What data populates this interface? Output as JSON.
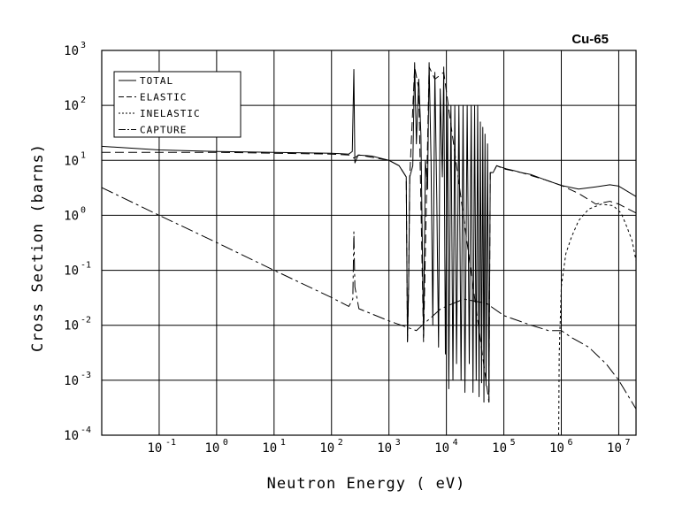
{
  "chart_data": {
    "type": "line",
    "title": "Cu-65",
    "xlabel": "Neutron Energy ( eV)",
    "ylabel": "Cross Section (barns)",
    "x_scale": "log",
    "y_scale": "log",
    "xlim": [
      0.01,
      20000000
    ],
    "ylim": [
      0.0001,
      1000
    ],
    "grid": true,
    "legend_position": "top-left",
    "x_ticks": [
      {
        "value": 0.1,
        "base": "10",
        "exp": "-1"
      },
      {
        "value": 1,
        "base": "10",
        "exp": "0"
      },
      {
        "value": 10,
        "base": "10",
        "exp": "1"
      },
      {
        "value": 100,
        "base": "10",
        "exp": "2"
      },
      {
        "value": 1000,
        "base": "10",
        "exp": "3"
      },
      {
        "value": 10000,
        "base": "10",
        "exp": "4"
      },
      {
        "value": 100000,
        "base": "10",
        "exp": "5"
      },
      {
        "value": 1000000,
        "base": "10",
        "exp": "6"
      },
      {
        "value": 10000000,
        "base": "10",
        "exp": "7"
      }
    ],
    "y_ticks": [
      {
        "value": 0.0001,
        "base": "10",
        "exp": "-4"
      },
      {
        "value": 0.001,
        "base": "10",
        "exp": "-3"
      },
      {
        "value": 0.01,
        "base": "10",
        "exp": "-2"
      },
      {
        "value": 0.1,
        "base": "10",
        "exp": "-1"
      },
      {
        "value": 1,
        "base": "10",
        "exp": "0"
      },
      {
        "value": 10,
        "base": "10",
        "exp": "1"
      },
      {
        "value": 100,
        "base": "10",
        "exp": "2"
      },
      {
        "value": 1000,
        "base": "10",
        "exp": "3"
      }
    ],
    "series": [
      {
        "name": "TOTAL",
        "dash": "",
        "points": [
          [
            0.01,
            18
          ],
          [
            0.1,
            15.5
          ],
          [
            1,
            14.5
          ],
          [
            10,
            14
          ],
          [
            100,
            13.5
          ],
          [
            200,
            13
          ],
          [
            230,
            14.5
          ],
          [
            245,
            450
          ],
          [
            255,
            9
          ],
          [
            290,
            12.5
          ],
          [
            500,
            12
          ],
          [
            1000,
            10
          ],
          [
            1500,
            8
          ],
          [
            2000,
            5
          ],
          [
            2100,
            0.005
          ],
          [
            2200,
            0.05
          ],
          [
            2300,
            5
          ],
          [
            2600,
            8
          ],
          [
            2800,
            600
          ],
          [
            3000,
            20
          ],
          [
            3300,
            300
          ],
          [
            3600,
            30
          ],
          [
            4000,
            0.006
          ],
          [
            4300,
            10
          ],
          [
            4700,
            3
          ],
          [
            5000,
            600
          ],
          [
            5400,
            10
          ],
          [
            5800,
            0.01
          ],
          [
            6300,
            400
          ],
          [
            6800,
            2
          ],
          [
            7300,
            0.004
          ],
          [
            7800,
            200
          ],
          [
            8500,
            5
          ],
          [
            9000,
            500
          ],
          [
            9600,
            0.003
          ],
          [
            10500,
            100
          ],
          [
            11000,
            0.0007
          ],
          [
            12000,
            100
          ],
          [
            13000,
            0.001
          ],
          [
            14000,
            100
          ],
          [
            15000,
            0.002
          ],
          [
            16500,
            100
          ],
          [
            18000,
            0.001
          ],
          [
            19500,
            100
          ],
          [
            21000,
            0.0006
          ],
          [
            23000,
            100
          ],
          [
            25000,
            0.002
          ],
          [
            27000,
            100
          ],
          [
            29000,
            0.0006
          ],
          [
            31000,
            100
          ],
          [
            33000,
            0.001
          ],
          [
            35000,
            100
          ],
          [
            37000,
            0.0005
          ],
          [
            39000,
            50
          ],
          [
            41000,
            0.0009
          ],
          [
            43000,
            40
          ],
          [
            45000,
            0.0004
          ],
          [
            47000,
            30
          ],
          [
            49000,
            0.0008
          ],
          [
            52000,
            20
          ],
          [
            55000,
            0.0004
          ],
          [
            58000,
            6
          ],
          [
            65000,
            6
          ],
          [
            75000,
            8
          ],
          [
            90000,
            7.5
          ],
          [
            110000,
            7
          ],
          [
            150000,
            6.5
          ],
          [
            200000,
            6
          ],
          [
            300000,
            5.5
          ],
          [
            500000,
            4.5
          ],
          [
            1000000,
            3.5
          ],
          [
            2000000,
            3
          ],
          [
            4000000,
            3.3
          ],
          [
            7000000,
            3.6
          ],
          [
            10000000,
            3.4
          ],
          [
            20000000,
            2.2
          ]
        ]
      },
      {
        "name": "ELASTIC",
        "dash": "10,5",
        "points": [
          [
            0.01,
            14
          ],
          [
            0.1,
            14
          ],
          [
            1,
            14
          ],
          [
            10,
            13.5
          ],
          [
            100,
            13
          ],
          [
            200,
            12.5
          ],
          [
            245,
            11
          ],
          [
            300,
            12.5
          ],
          [
            1000,
            10
          ],
          [
            1500,
            8
          ],
          [
            2000,
            5
          ],
          [
            2100,
            0.005
          ],
          [
            2200,
            0.05
          ],
          [
            2300,
            5
          ],
          [
            2800,
            500
          ],
          [
            3300,
            200
          ],
          [
            4000,
            0.005
          ],
          [
            5000,
            500
          ],
          [
            6300,
            300
          ],
          [
            9000,
            400
          ],
          [
            55000,
            0.0004
          ],
          [
            58000,
            6
          ],
          [
            65000,
            6
          ],
          [
            75000,
            8
          ],
          [
            100000,
            7
          ],
          [
            200000,
            6
          ],
          [
            500000,
            4.5
          ],
          [
            1000000,
            3.5
          ],
          [
            2000000,
            2.5
          ],
          [
            4000000,
            1.6
          ],
          [
            7000000,
            1.8
          ],
          [
            10000000,
            1.6
          ],
          [
            20000000,
            1.1
          ]
        ]
      },
      {
        "name": "INELASTIC",
        "dash": "3,3",
        "points": [
          [
            900000,
            0.0001
          ],
          [
            920000,
            0.003
          ],
          [
            1000000,
            0.05
          ],
          [
            1200000,
            0.2
          ],
          [
            1500000,
            0.4
          ],
          [
            2000000,
            0.8
          ],
          [
            3000000,
            1.3
          ],
          [
            5000000,
            1.6
          ],
          [
            8000000,
            1.5
          ],
          [
            11000000,
            1.1
          ],
          [
            14000000,
            0.6
          ],
          [
            17000000,
            0.35
          ],
          [
            20000000,
            0.15
          ]
        ]
      },
      {
        "name": "CAPTURE",
        "dash": "14,4,3,4",
        "points": [
          [
            0.01,
            3.2
          ],
          [
            0.1,
            1.0
          ],
          [
            1,
            0.32
          ],
          [
            10,
            0.1
          ],
          [
            100,
            0.032
          ],
          [
            200,
            0.022
          ],
          [
            235,
            0.03
          ],
          [
            245,
            0.5
          ],
          [
            255,
            0.05
          ],
          [
            300,
            0.02
          ],
          [
            1000,
            0.012
          ],
          [
            3000,
            0.008
          ],
          [
            8000,
            0.02
          ],
          [
            20000,
            0.03
          ],
          [
            50000,
            0.025
          ],
          [
            100000,
            0.015
          ],
          [
            300000,
            0.01
          ],
          [
            600000,
            0.008
          ],
          [
            1000000,
            0.008
          ],
          [
            1500000,
            0.006
          ],
          [
            3000000,
            0.004
          ],
          [
            6000000,
            0.002
          ],
          [
            10000000,
            0.001
          ],
          [
            20000000,
            0.0003
          ]
        ]
      }
    ]
  }
}
